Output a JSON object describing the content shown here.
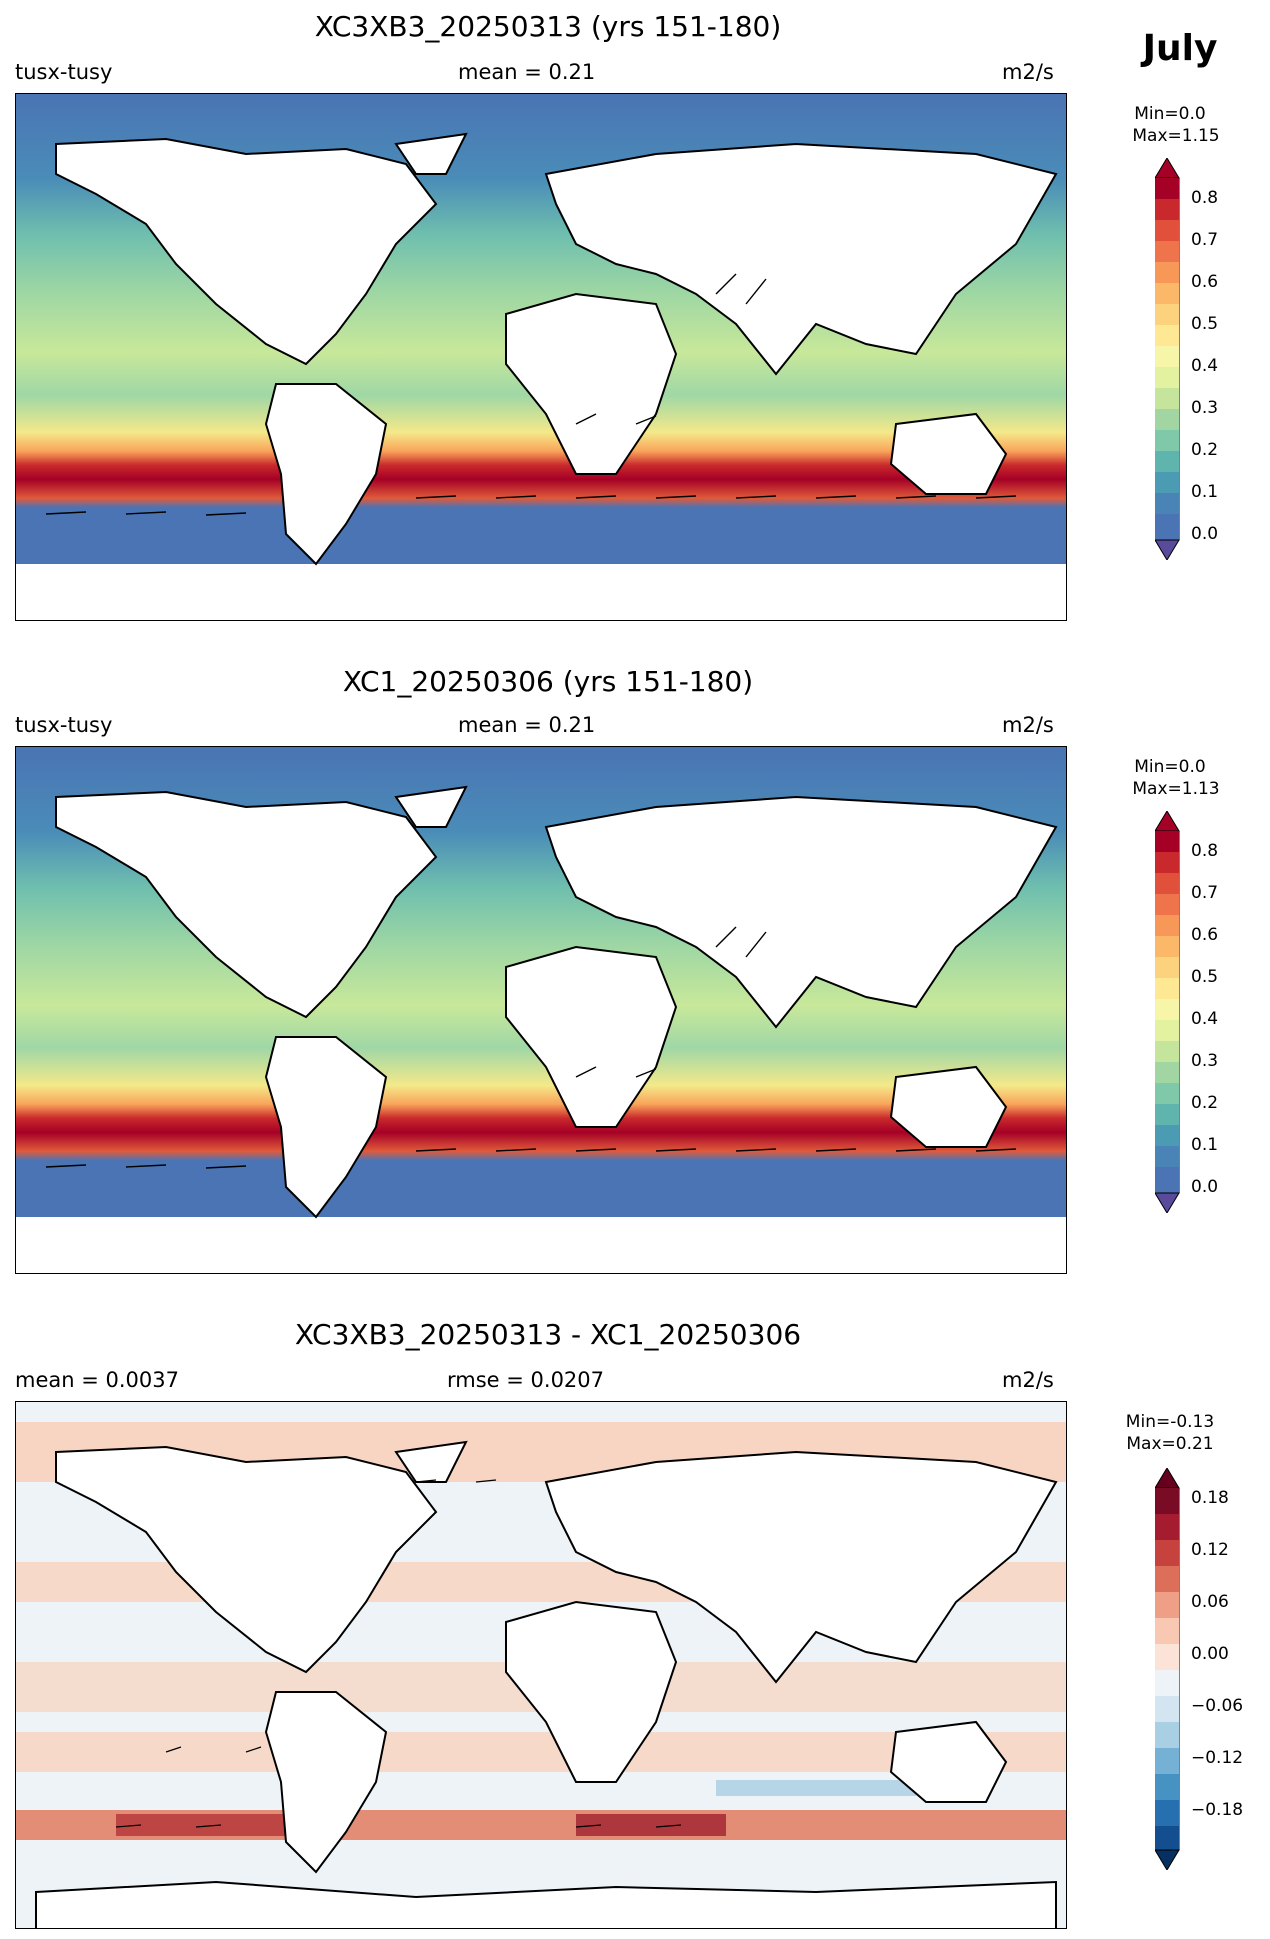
{
  "month_label": "July",
  "panels": [
    {
      "title": "XC3XB3_20250313 (yrs 151-180)",
      "left_label": "tusx-tusy",
      "center_label": "mean = 0.21",
      "right_label": "m2/s",
      "min_label": "Min=0.0",
      "max_label": "Max=1.15",
      "colormap": "RdYlBu_r",
      "colorbar_ticks": [
        "0.8",
        "0.7",
        "0.6",
        "0.5",
        "0.4",
        "0.3",
        "0.2",
        "0.1",
        "0.0"
      ]
    },
    {
      "title": "XC1_20250306 (yrs 151-180)",
      "left_label": "tusx-tusy",
      "center_label": "mean = 0.21",
      "right_label": "m2/s",
      "min_label": "Min=0.0",
      "max_label": "Max=1.13",
      "colormap": "RdYlBu_r",
      "colorbar_ticks": [
        "0.8",
        "0.7",
        "0.6",
        "0.5",
        "0.4",
        "0.3",
        "0.2",
        "0.1",
        "0.0"
      ]
    },
    {
      "title": "XC3XB3_20250313 - XC1_20250306",
      "left_label": "mean = 0.0037",
      "center_label": "rmse = 0.0207",
      "right_label": "m2/s",
      "min_label": "Min=-0.13",
      "max_label": "Max=0.21",
      "colormap": "RdBu_r",
      "colorbar_ticks": [
        "0.18",
        "0.12",
        "0.06",
        "0.00",
        "−0.06",
        "−0.12",
        "−0.18"
      ]
    }
  ],
  "colors": {
    "land": "#ffffff",
    "ocean_low": "#4a74b4",
    "ocean_mid": "#7fc8a9",
    "ocean_high": "#a50026",
    "diff_pos": "#f7c9b0",
    "diff_neg": "#e8f0f5"
  }
}
